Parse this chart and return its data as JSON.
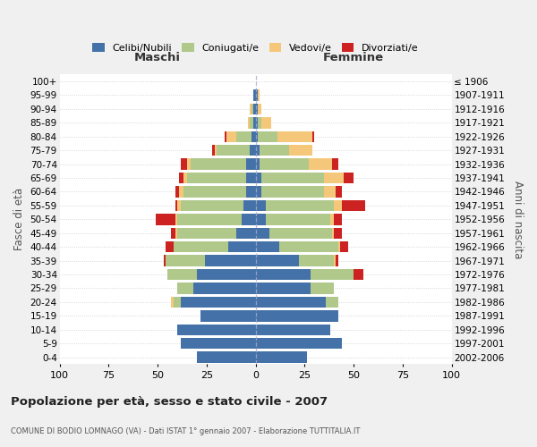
{
  "age_groups": [
    "0-4",
    "5-9",
    "10-14",
    "15-19",
    "20-24",
    "25-29",
    "30-34",
    "35-39",
    "40-44",
    "45-49",
    "50-54",
    "55-59",
    "60-64",
    "65-69",
    "70-74",
    "75-79",
    "80-84",
    "85-89",
    "90-94",
    "95-99",
    "100+"
  ],
  "birth_years": [
    "2002-2006",
    "1997-2001",
    "1992-1996",
    "1987-1991",
    "1982-1986",
    "1977-1981",
    "1972-1976",
    "1967-1971",
    "1962-1966",
    "1957-1961",
    "1952-1956",
    "1947-1951",
    "1942-1946",
    "1937-1941",
    "1932-1936",
    "1927-1931",
    "1922-1926",
    "1917-1921",
    "1912-1916",
    "1907-1911",
    "≤ 1906"
  ],
  "colors": {
    "celibi": "#4472a8",
    "coniugati": "#b0c88a",
    "vedovi": "#f5c77a",
    "divorziati": "#cc2222"
  },
  "maschi": {
    "celibi": [
      30,
      38,
      40,
      28,
      38,
      32,
      30,
      26,
      14,
      10,
      7,
      6,
      5,
      5,
      5,
      3,
      2,
      1,
      1,
      1,
      0
    ],
    "coniugati": [
      0,
      0,
      0,
      0,
      4,
      8,
      15,
      20,
      28,
      30,
      33,
      32,
      32,
      30,
      28,
      17,
      8,
      2,
      1,
      0,
      0
    ],
    "vedovi": [
      0,
      0,
      0,
      0,
      1,
      0,
      0,
      0,
      0,
      1,
      1,
      2,
      2,
      2,
      2,
      1,
      5,
      1,
      1,
      0,
      0
    ],
    "divorziati": [
      0,
      0,
      0,
      0,
      0,
      0,
      0,
      1,
      4,
      2,
      10,
      1,
      2,
      2,
      3,
      1,
      1,
      0,
      0,
      0,
      0
    ]
  },
  "femmine": {
    "celibi": [
      26,
      44,
      38,
      42,
      36,
      28,
      28,
      22,
      12,
      7,
      5,
      5,
      3,
      3,
      2,
      2,
      1,
      1,
      1,
      1,
      0
    ],
    "coniugati": [
      0,
      0,
      0,
      0,
      6,
      12,
      22,
      18,
      30,
      32,
      33,
      35,
      32,
      32,
      25,
      15,
      10,
      2,
      0,
      0,
      0
    ],
    "vedovi": [
      0,
      0,
      0,
      0,
      0,
      0,
      0,
      1,
      1,
      1,
      2,
      4,
      6,
      10,
      12,
      12,
      18,
      5,
      2,
      1,
      0
    ],
    "divorziati": [
      0,
      0,
      0,
      0,
      0,
      0,
      5,
      1,
      4,
      4,
      4,
      12,
      3,
      5,
      3,
      0,
      1,
      0,
      0,
      0,
      0
    ]
  },
  "title": "Popolazione per età, sesso e stato civile - 2007",
  "subtitle": "COMUNE DI BODIO LOMNAGO (VA) - Dati ISTAT 1° gennaio 2007 - Elaborazione TUTTITALIA.IT",
  "xlabel_left": "Maschi",
  "xlabel_right": "Femmine",
  "ylabel_left": "Fasce di età",
  "ylabel_right": "Anni di nascita",
  "xlim": 100,
  "xtick_step": 25,
  "legend_labels": [
    "Celibi/Nubili",
    "Coniugati/e",
    "Vedovi/e",
    "Divorziati/e"
  ],
  "bg_color": "#f0f0f0",
  "plot_bg": "#ffffff"
}
